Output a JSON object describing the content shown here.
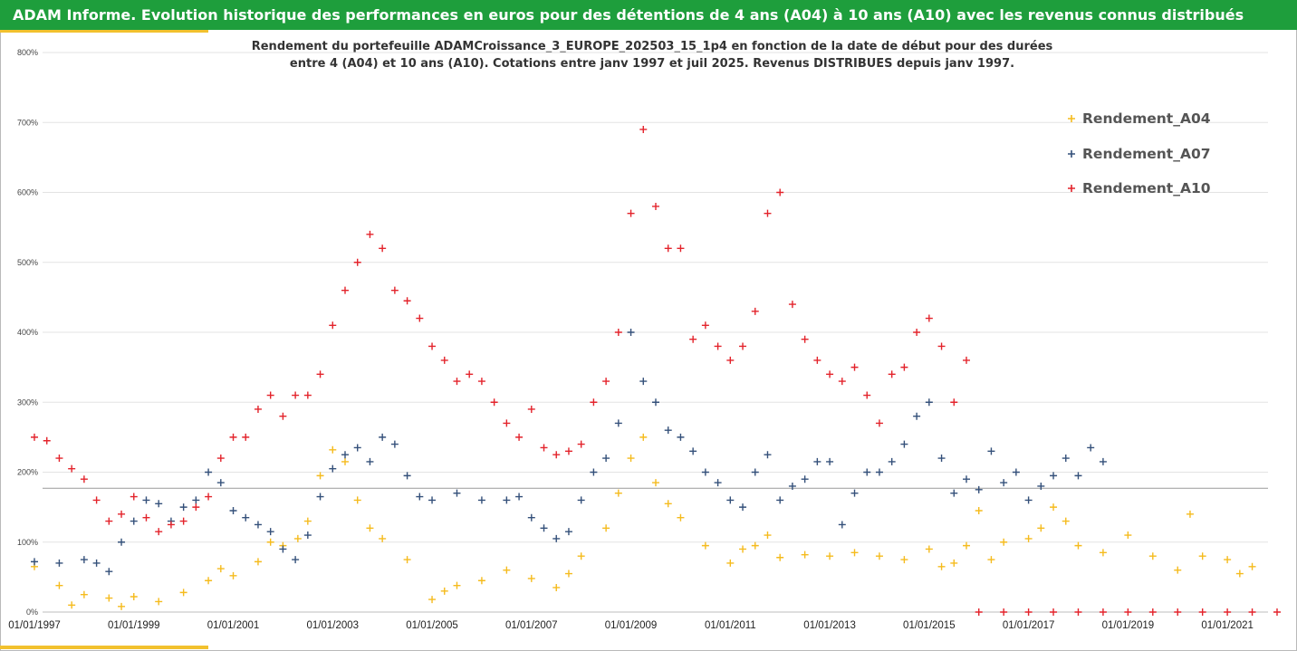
{
  "header": {
    "title": "ADAM Informe. Evolution historique des performances en euros pour des détentions de 4 ans (A04) à 10 ans (A10) avec les revenus connus distribués"
  },
  "chart_data": {
    "type": "scatter",
    "title_line1": "Rendement du portefeuille ADAMCroissance_3_EUROPE_202503_15_1p4  en fonction de la date de début pour des durées",
    "title_line2": "entre 4 (A04) et 10 ans (A10). Cotations entre janv 1997 et juil 2025. Revenus DISTRIBUES depuis janv 1997.",
    "xlabel": "",
    "ylabel": "",
    "xlim": [
      "1997-01-01",
      "2022-01-01"
    ],
    "ylim": [
      0,
      800
    ],
    "y_ticks": [
      "0%",
      "100%",
      "200%",
      "300%",
      "400%",
      "500%",
      "600%",
      "700%",
      "800%"
    ],
    "x_ticks": [
      "01/01/1997",
      "01/01/1999",
      "01/01/2001",
      "01/01/2003",
      "01/01/2005",
      "01/01/2007",
      "01/01/2009",
      "01/01/2011",
      "01/01/2013",
      "01/01/2015",
      "01/01/2017",
      "01/01/2019",
      "01/01/2021"
    ],
    "reference_line_y": 177,
    "grid": true,
    "marker": "plus",
    "legend_position": "right",
    "series": [
      {
        "name": "Rendement_A04",
        "color": "#f5bb1d",
        "points": [
          [
            1997.0,
            65
          ],
          [
            1997.5,
            38
          ],
          [
            1997.75,
            10
          ],
          [
            1998.0,
            25
          ],
          [
            1998.5,
            20
          ],
          [
            1998.75,
            8
          ],
          [
            1999.0,
            22
          ],
          [
            1999.5,
            15
          ],
          [
            2000.0,
            28
          ],
          [
            2000.5,
            45
          ],
          [
            2000.75,
            62
          ],
          [
            2001.0,
            52
          ],
          [
            2001.5,
            72
          ],
          [
            2001.75,
            100
          ],
          [
            2002.0,
            95
          ],
          [
            2002.3,
            105
          ],
          [
            2002.5,
            130
          ],
          [
            2002.75,
            195
          ],
          [
            2003.0,
            232
          ],
          [
            2003.25,
            215
          ],
          [
            2003.5,
            160
          ],
          [
            2003.75,
            120
          ],
          [
            2004.0,
            105
          ],
          [
            2004.5,
            75
          ],
          [
            2005.0,
            18
          ],
          [
            2005.25,
            30
          ],
          [
            2005.5,
            38
          ],
          [
            2006.0,
            45
          ],
          [
            2006.5,
            60
          ],
          [
            2007.0,
            48
          ],
          [
            2007.5,
            35
          ],
          [
            2007.75,
            55
          ],
          [
            2008.0,
            80
          ],
          [
            2008.5,
            120
          ],
          [
            2008.75,
            170
          ],
          [
            2009.0,
            220
          ],
          [
            2009.25,
            250
          ],
          [
            2009.5,
            185
          ],
          [
            2009.75,
            155
          ],
          [
            2010.0,
            135
          ],
          [
            2010.5,
            95
          ],
          [
            2011.0,
            70
          ],
          [
            2011.25,
            90
          ],
          [
            2011.5,
            95
          ],
          [
            2011.75,
            110
          ],
          [
            2012.0,
            78
          ],
          [
            2012.5,
            82
          ],
          [
            2013.0,
            80
          ],
          [
            2013.5,
            85
          ],
          [
            2014.0,
            80
          ],
          [
            2014.5,
            75
          ],
          [
            2015.0,
            90
          ],
          [
            2015.25,
            65
          ],
          [
            2015.5,
            70
          ],
          [
            2015.75,
            95
          ],
          [
            2016.0,
            145
          ],
          [
            2016.25,
            75
          ],
          [
            2016.5,
            100
          ],
          [
            2017.0,
            105
          ],
          [
            2017.25,
            120
          ],
          [
            2017.5,
            150
          ],
          [
            2017.75,
            130
          ],
          [
            2018.0,
            95
          ],
          [
            2018.5,
            85
          ],
          [
            2019.0,
            110
          ],
          [
            2019.5,
            80
          ],
          [
            2020.0,
            60
          ],
          [
            2020.25,
            140
          ],
          [
            2020.5,
            80
          ],
          [
            2021.0,
            75
          ],
          [
            2021.25,
            55
          ],
          [
            2021.5,
            65
          ]
        ]
      },
      {
        "name": "Rendement_A07",
        "color": "#34507a",
        "points": [
          [
            1997.0,
            72
          ],
          [
            1997.5,
            70
          ],
          [
            1998.0,
            75
          ],
          [
            1998.25,
            70
          ],
          [
            1998.5,
            58
          ],
          [
            1998.75,
            100
          ],
          [
            1999.0,
            130
          ],
          [
            1999.25,
            160
          ],
          [
            1999.5,
            155
          ],
          [
            1999.75,
            130
          ],
          [
            2000.0,
            150
          ],
          [
            2000.25,
            160
          ],
          [
            2000.5,
            200
          ],
          [
            2000.75,
            185
          ],
          [
            2001.0,
            145
          ],
          [
            2001.25,
            135
          ],
          [
            2001.5,
            125
          ],
          [
            2001.75,
            115
          ],
          [
            2002.0,
            90
          ],
          [
            2002.25,
            75
          ],
          [
            2002.5,
            110
          ],
          [
            2002.75,
            165
          ],
          [
            2003.0,
            205
          ],
          [
            2003.25,
            225
          ],
          [
            2003.5,
            235
          ],
          [
            2003.75,
            215
          ],
          [
            2004.0,
            250
          ],
          [
            2004.25,
            240
          ],
          [
            2004.5,
            195
          ],
          [
            2004.75,
            165
          ],
          [
            2005.0,
            160
          ],
          [
            2005.5,
            170
          ],
          [
            2006.0,
            160
          ],
          [
            2006.5,
            160
          ],
          [
            2006.75,
            165
          ],
          [
            2007.0,
            135
          ],
          [
            2007.25,
            120
          ],
          [
            2007.5,
            105
          ],
          [
            2007.75,
            115
          ],
          [
            2008.0,
            160
          ],
          [
            2008.25,
            200
          ],
          [
            2008.5,
            220
          ],
          [
            2008.75,
            270
          ],
          [
            2009.0,
            400
          ],
          [
            2009.25,
            330
          ],
          [
            2009.5,
            300
          ],
          [
            2009.75,
            260
          ],
          [
            2010.0,
            250
          ],
          [
            2010.25,
            230
          ],
          [
            2010.5,
            200
          ],
          [
            2010.75,
            185
          ],
          [
            2011.0,
            160
          ],
          [
            2011.25,
            150
          ],
          [
            2011.5,
            200
          ],
          [
            2011.75,
            225
          ],
          [
            2012.0,
            160
          ],
          [
            2012.25,
            180
          ],
          [
            2012.5,
            190
          ],
          [
            2012.75,
            215
          ],
          [
            2013.0,
            215
          ],
          [
            2013.25,
            125
          ],
          [
            2013.5,
            170
          ],
          [
            2013.75,
            200
          ],
          [
            2014.0,
            200
          ],
          [
            2014.25,
            215
          ],
          [
            2014.5,
            240
          ],
          [
            2014.75,
            280
          ],
          [
            2015.0,
            300
          ],
          [
            2015.25,
            220
          ],
          [
            2015.5,
            170
          ],
          [
            2015.75,
            190
          ],
          [
            2016.0,
            175
          ],
          [
            2016.25,
            230
          ],
          [
            2016.5,
            185
          ],
          [
            2016.75,
            200
          ],
          [
            2017.0,
            160
          ],
          [
            2017.25,
            180
          ],
          [
            2017.5,
            195
          ],
          [
            2017.75,
            220
          ],
          [
            2018.0,
            195
          ],
          [
            2018.25,
            235
          ],
          [
            2018.5,
            215
          ]
        ]
      },
      {
        "name": "Rendement_A10",
        "color": "#e3232b",
        "points": [
          [
            1997.0,
            250
          ],
          [
            1997.25,
            245
          ],
          [
            1997.5,
            220
          ],
          [
            1997.75,
            205
          ],
          [
            1998.0,
            190
          ],
          [
            1998.25,
            160
          ],
          [
            1998.5,
            130
          ],
          [
            1998.75,
            140
          ],
          [
            1999.0,
            165
          ],
          [
            1999.25,
            135
          ],
          [
            1999.5,
            115
          ],
          [
            1999.75,
            125
          ],
          [
            2000.0,
            130
          ],
          [
            2000.25,
            150
          ],
          [
            2000.5,
            165
          ],
          [
            2000.75,
            220
          ],
          [
            2001.0,
            250
          ],
          [
            2001.25,
            250
          ],
          [
            2001.5,
            290
          ],
          [
            2001.75,
            310
          ],
          [
            2002.0,
            280
          ],
          [
            2002.25,
            310
          ],
          [
            2002.5,
            310
          ],
          [
            2002.75,
            340
          ],
          [
            2003.0,
            410
          ],
          [
            2003.25,
            460
          ],
          [
            2003.5,
            500
          ],
          [
            2003.75,
            540
          ],
          [
            2004.0,
            520
          ],
          [
            2004.25,
            460
          ],
          [
            2004.5,
            445
          ],
          [
            2004.75,
            420
          ],
          [
            2005.0,
            380
          ],
          [
            2005.25,
            360
          ],
          [
            2005.5,
            330
          ],
          [
            2005.75,
            340
          ],
          [
            2006.0,
            330
          ],
          [
            2006.25,
            300
          ],
          [
            2006.5,
            270
          ],
          [
            2006.75,
            250
          ],
          [
            2007.0,
            290
          ],
          [
            2007.25,
            235
          ],
          [
            2007.5,
            225
          ],
          [
            2007.75,
            230
          ],
          [
            2008.0,
            240
          ],
          [
            2008.25,
            300
          ],
          [
            2008.5,
            330
          ],
          [
            2008.75,
            400
          ],
          [
            2009.0,
            570
          ],
          [
            2009.25,
            690
          ],
          [
            2009.5,
            580
          ],
          [
            2009.75,
            520
          ],
          [
            2010.0,
            520
          ],
          [
            2010.25,
            390
          ],
          [
            2010.5,
            410
          ],
          [
            2010.75,
            380
          ],
          [
            2011.0,
            360
          ],
          [
            2011.25,
            380
          ],
          [
            2011.5,
            430
          ],
          [
            2011.75,
            570
          ],
          [
            2012.0,
            600
          ],
          [
            2012.25,
            440
          ],
          [
            2012.5,
            390
          ],
          [
            2012.75,
            360
          ],
          [
            2013.0,
            340
          ],
          [
            2013.25,
            330
          ],
          [
            2013.5,
            350
          ],
          [
            2013.75,
            310
          ],
          [
            2014.0,
            270
          ],
          [
            2014.25,
            340
          ],
          [
            2014.5,
            350
          ],
          [
            2014.75,
            400
          ],
          [
            2015.0,
            420
          ],
          [
            2015.25,
            380
          ],
          [
            2015.5,
            300
          ],
          [
            2015.75,
            360
          ],
          [
            2016.0,
            0
          ],
          [
            2016.5,
            0
          ],
          [
            2017.0,
            0
          ],
          [
            2017.5,
            0
          ],
          [
            2018.0,
            0
          ],
          [
            2018.5,
            0
          ],
          [
            2019.0,
            0
          ],
          [
            2019.5,
            0
          ],
          [
            2020.0,
            0
          ],
          [
            2020.5,
            0
          ],
          [
            2021.0,
            0
          ],
          [
            2021.5,
            0
          ],
          [
            2022.0,
            0
          ]
        ]
      }
    ]
  }
}
